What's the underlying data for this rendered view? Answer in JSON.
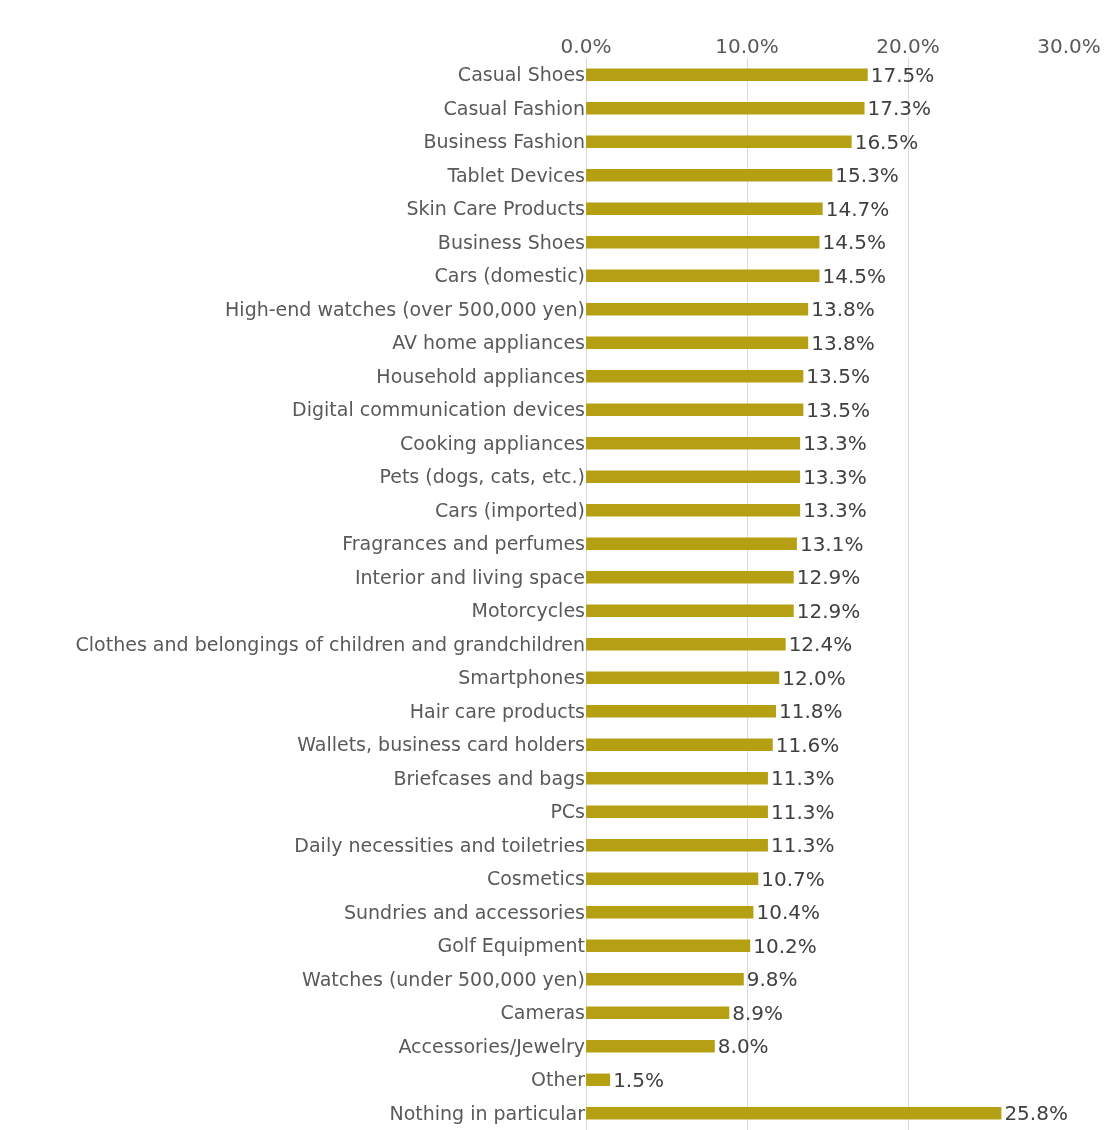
{
  "chart_data": {
    "type": "bar",
    "orientation": "horizontal",
    "categories": [
      "Casual Shoes",
      "Casual Fashion",
      "Business Fashion",
      "Tablet Devices",
      "Skin Care Products",
      "Business Shoes",
      "Cars (domestic)",
      "High-end watches (over 500,000 yen)",
      "AV home appliances",
      "Household appliances",
      "Digital communication devices",
      "Cooking appliances",
      "Pets (dogs, cats, etc.)",
      "Cars (imported)",
      "Fragrances and perfumes",
      "Interior and living space",
      "Motorcycles",
      "Clothes and belongings of children and grandchildren",
      "Smartphones",
      "Hair care products",
      "Wallets, business card holders",
      "Briefcases and bags",
      "PCs",
      "Daily necessities and toiletries",
      "Cosmetics",
      "Sundries and accessories",
      "Golf Equipment",
      "Watches (under 500,000 yen)",
      "Cameras",
      "Accessories/Jewelry",
      "Other",
      "Nothing in particular"
    ],
    "values": [
      17.5,
      17.3,
      16.5,
      15.3,
      14.7,
      14.5,
      14.5,
      13.8,
      13.8,
      13.5,
      13.5,
      13.3,
      13.3,
      13.3,
      13.1,
      12.9,
      12.9,
      12.4,
      12.0,
      11.8,
      11.6,
      11.3,
      11.3,
      11.3,
      10.7,
      10.4,
      10.2,
      9.8,
      8.9,
      8.0,
      1.5,
      25.8
    ],
    "value_labels": [
      "17.5%",
      "17.3%",
      "16.5%",
      "15.3%",
      "14.7%",
      "14.5%",
      "14.5%",
      "13.8%",
      "13.8%",
      "13.5%",
      "13.5%",
      "13.3%",
      "13.3%",
      "13.3%",
      "13.1%",
      "12.9%",
      "12.9%",
      "12.4%",
      "12.0%",
      "11.8%",
      "11.6%",
      "11.3%",
      "11.3%",
      "11.3%",
      "10.7%",
      "10.4%",
      "10.2%",
      "9.8%",
      "8.9%",
      "8.0%",
      "1.5%",
      "25.8%"
    ],
    "color": "#b5a014",
    "xlim": [
      0,
      30
    ],
    "xticks": [
      {
        "value": 0,
        "label": "0.0%"
      },
      {
        "value": 10,
        "label": "10.0%"
      },
      {
        "value": 20,
        "label": "20.0%"
      },
      {
        "value": 30,
        "label": "30.0%"
      }
    ],
    "grid": "x"
  }
}
